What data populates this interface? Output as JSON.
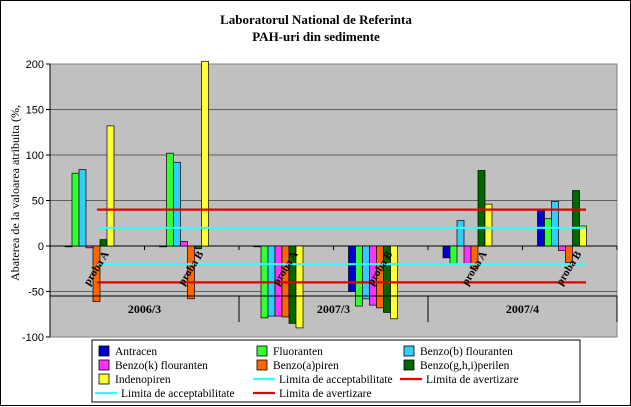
{
  "chart_data": {
    "type": "bar",
    "title": "Laboratorul National de Referinta",
    "subtitle": "PAH-uri din sedimente",
    "ylabel": "Abaterea de la valoarea atribuita (%,",
    "xlabel": "",
    "ylim": [
      -100,
      200
    ],
    "yticks": [
      -100,
      -50,
      0,
      50,
      100,
      150,
      200
    ],
    "grid": true,
    "legend_position": "bottom",
    "groups": [
      "2006/3",
      "2007/3",
      "2007/4"
    ],
    "categories": [
      "proba A",
      "proba B",
      "proba A",
      "proba B",
      "proba A",
      "proba B"
    ],
    "series": [
      {
        "name": "Antracen",
        "color": "#0000cc",
        "values": [
          0,
          0,
          0,
          -50,
          -13,
          40
        ]
      },
      {
        "name": "Fluoranten",
        "color": "#33ff33",
        "values": [
          80,
          102,
          -79,
          -66,
          -20,
          30
        ]
      },
      {
        "name": "Benzo(b) flouranten",
        "color": "#33ccff",
        "values": [
          84,
          92,
          -77,
          -58,
          28,
          49
        ]
      },
      {
        "name": "Benzo(k) flouranten",
        "color": "#ff33ff",
        "values": [
          -2,
          5,
          -77,
          -65,
          -20,
          -5
        ]
      },
      {
        "name": "Benzo(a)piren",
        "color": "#ff6600",
        "values": [
          -61,
          -58,
          -78,
          -68,
          -25,
          -18
        ]
      },
      {
        "name": "Benzo(g,h,i)perilen",
        "color": "#006600",
        "values": [
          7,
          -3,
          -85,
          -73,
          83,
          61
        ]
      },
      {
        "name": "Indenopiren",
        "color": "#ffff33",
        "values": [
          132,
          203,
          -90,
          -80,
          46,
          22
        ]
      }
    ],
    "reference_lines": [
      {
        "name": "Limita de acceptabilitate",
        "color": "#33ffff",
        "values": [
          20,
          -20
        ]
      },
      {
        "name": "Limita de avertizare",
        "color": "#e00000",
        "values": [
          40,
          -40
        ]
      }
    ]
  }
}
